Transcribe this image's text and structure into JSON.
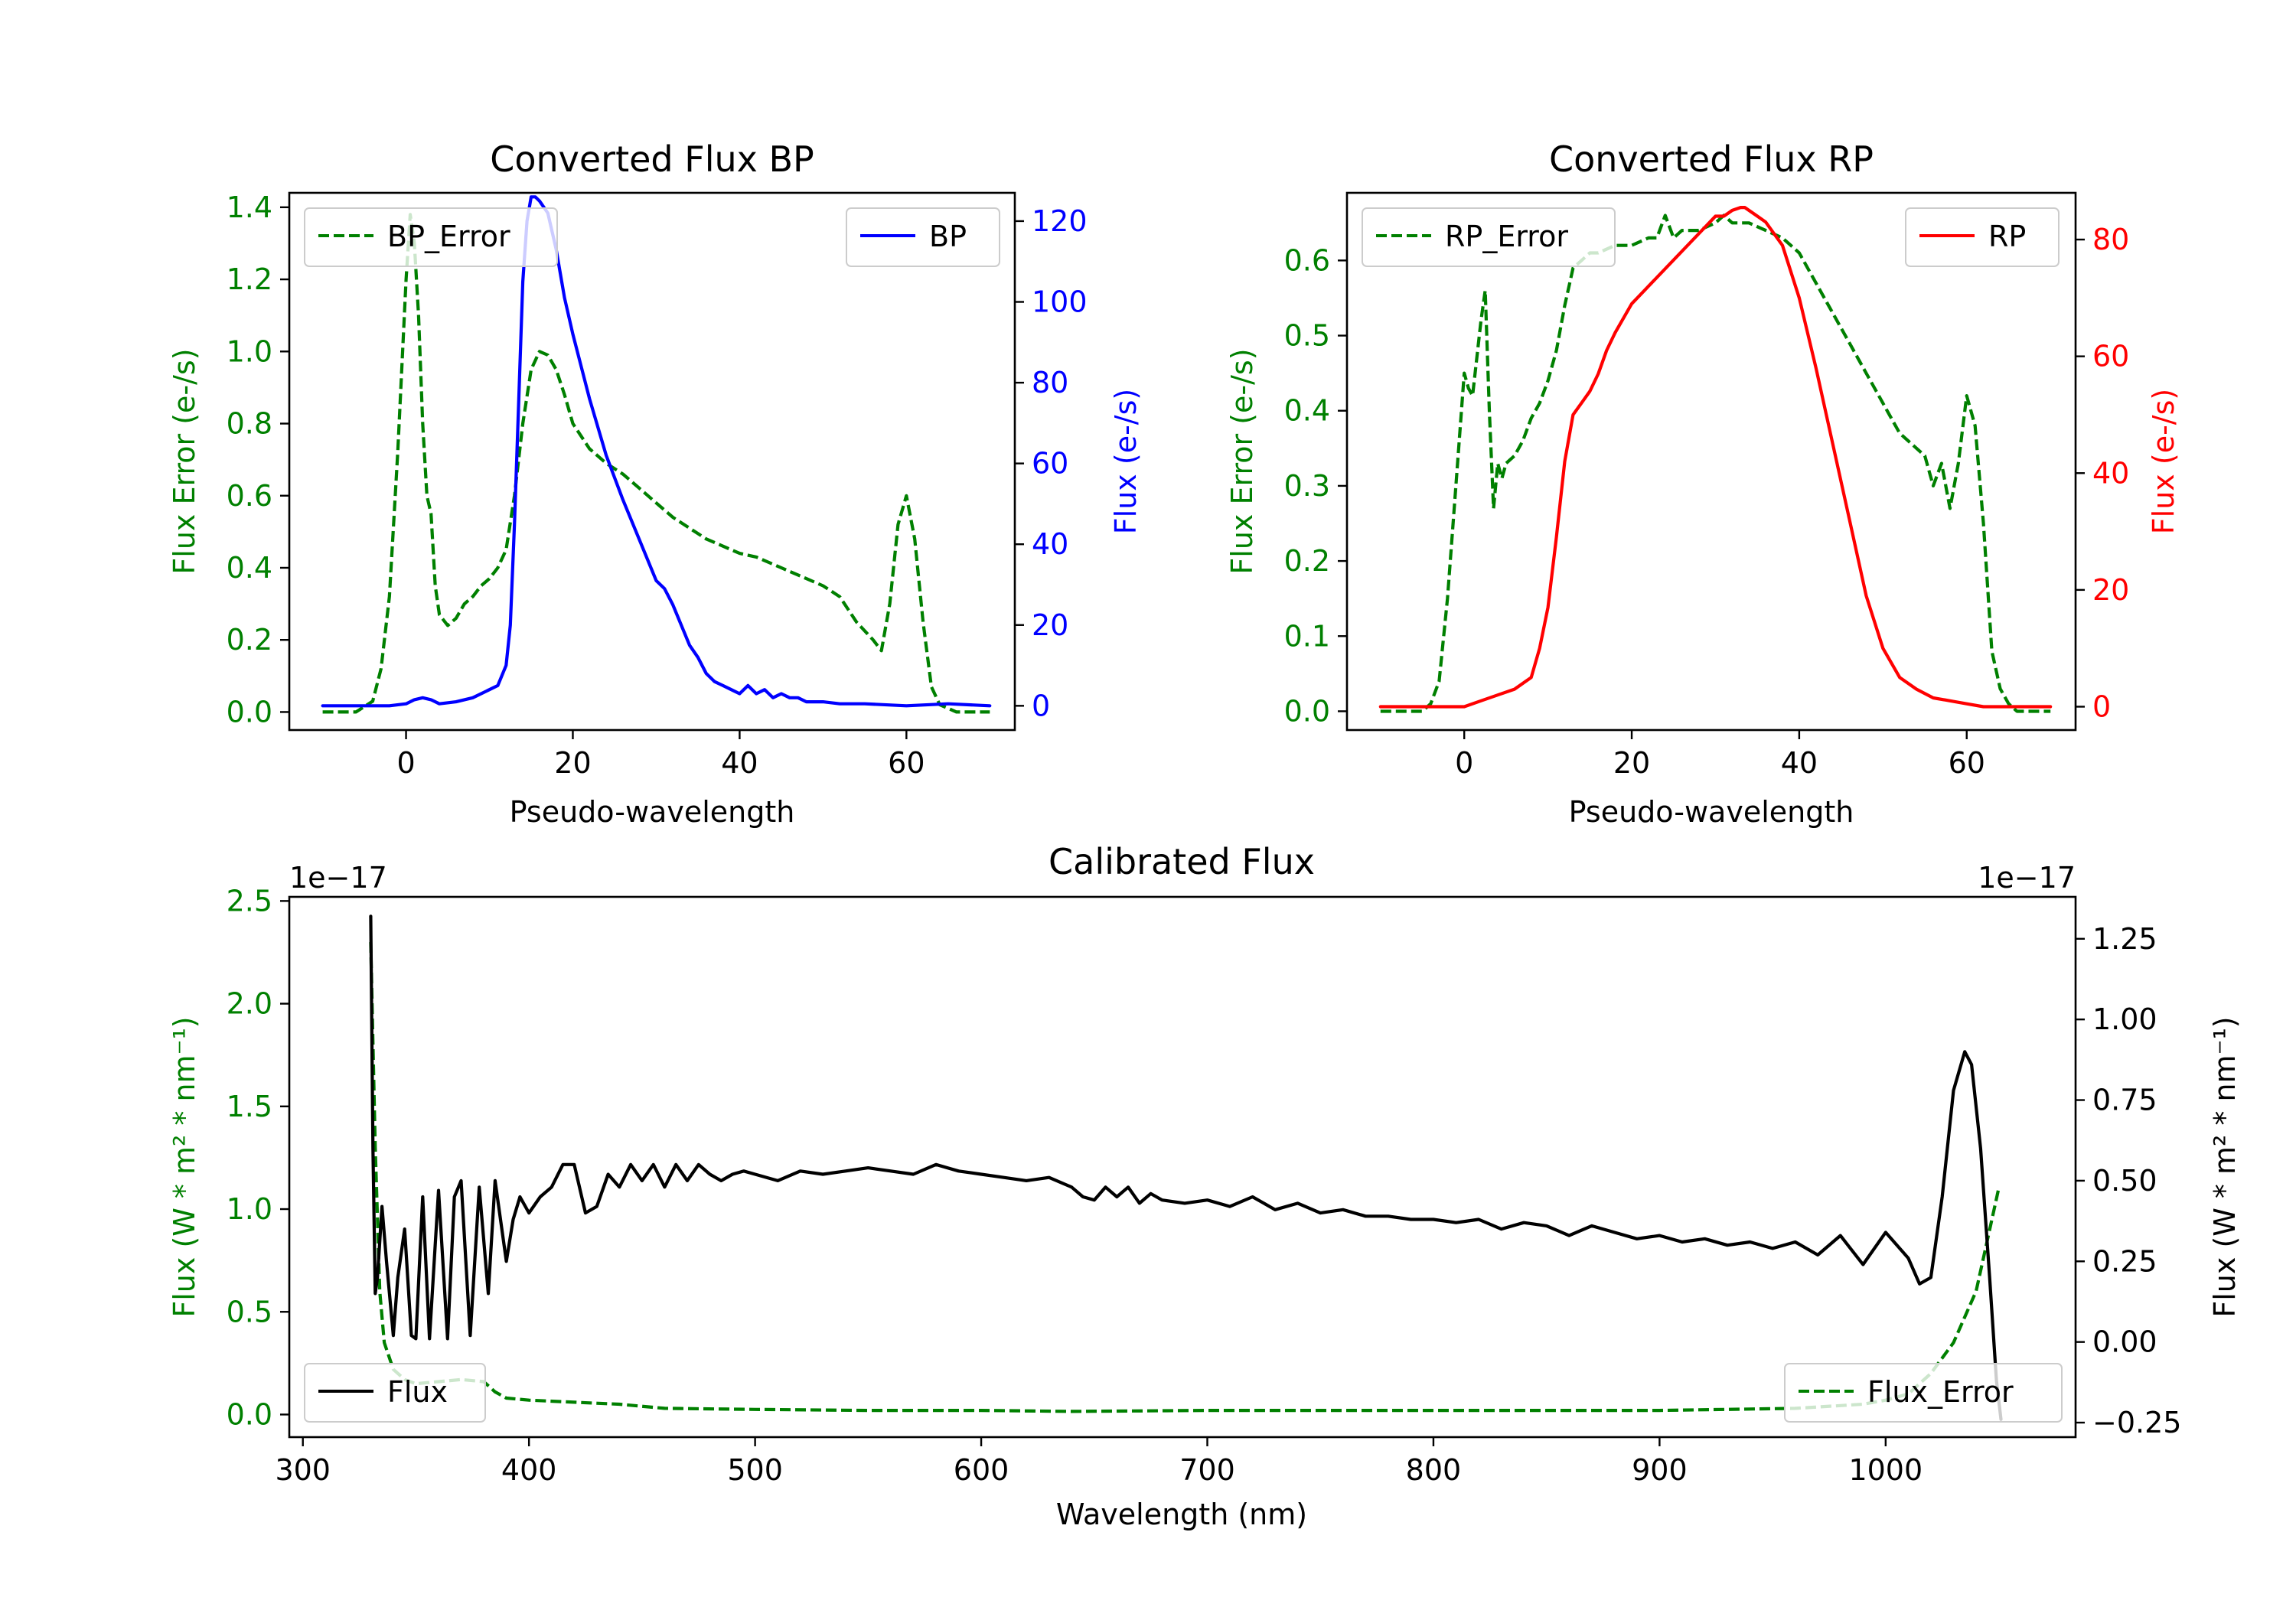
{
  "figure": {
    "colors": {
      "green": "#008000",
      "blue": "#0000ff",
      "red": "#ff0000",
      "black": "#000000"
    }
  },
  "chart_data": [
    {
      "type": "line",
      "title": "Converted Flux BP",
      "xlabel": "Pseudo-wavelength",
      "xlim": [
        -14,
        73
      ],
      "xticks": [
        0,
        20,
        40,
        60
      ],
      "y_left": {
        "label": "Flux Error (e-/s)",
        "color": "#008000",
        "lim": [
          -0.05,
          1.44
        ],
        "ticks": [
          0.0,
          0.2,
          0.4,
          0.6,
          0.8,
          1.0,
          1.2,
          1.4
        ],
        "tick_labels": [
          "0.0",
          "0.2",
          "0.4",
          "0.6",
          "0.8",
          "1.0",
          "1.2",
          "1.4"
        ]
      },
      "y_right": {
        "label": "Flux (e-/s)",
        "color": "#0000ff",
        "lim": [
          -6,
          127
        ],
        "ticks": [
          0,
          20,
          40,
          60,
          80,
          100,
          120
        ],
        "tick_labels": [
          "0",
          "20",
          "40",
          "60",
          "80",
          "100",
          "120"
        ]
      },
      "series": [
        {
          "name": "BP_Error",
          "axis": "left",
          "color": "#008000",
          "dash": true,
          "x": [
            -10,
            -6,
            -4,
            -3,
            -2,
            -1,
            0,
            0.5,
            1,
            1.5,
            2,
            2.5,
            3,
            3.5,
            4,
            5,
            6,
            7,
            8,
            9,
            10,
            11,
            12,
            13,
            14,
            15,
            16,
            17,
            18,
            19,
            20,
            22,
            24,
            26,
            28,
            30,
            32,
            34,
            36,
            38,
            40,
            42,
            44,
            46,
            48,
            50,
            52,
            54,
            56,
            57,
            58,
            59,
            60,
            61,
            62,
            63,
            64,
            65,
            66,
            70
          ],
          "y": [
            0,
            0,
            0.03,
            0.12,
            0.32,
            0.72,
            1.2,
            1.38,
            1.3,
            1.1,
            0.8,
            0.6,
            0.55,
            0.35,
            0.27,
            0.24,
            0.26,
            0.3,
            0.32,
            0.35,
            0.37,
            0.4,
            0.45,
            0.6,
            0.8,
            0.95,
            1.0,
            0.99,
            0.95,
            0.88,
            0.8,
            0.73,
            0.69,
            0.66,
            0.62,
            0.58,
            0.54,
            0.51,
            0.48,
            0.46,
            0.44,
            0.43,
            0.41,
            0.39,
            0.37,
            0.35,
            0.32,
            0.25,
            0.2,
            0.17,
            0.3,
            0.52,
            0.6,
            0.48,
            0.25,
            0.07,
            0.02,
            0.01,
            0,
            0
          ]
        },
        {
          "name": "BP",
          "axis": "right",
          "color": "#0000ff",
          "dash": false,
          "x": [
            -10,
            -5,
            -2,
            0,
            1,
            2,
            3,
            4,
            6,
            8,
            10,
            11,
            12,
            12.5,
            13,
            13.5,
            14,
            14.5,
            15,
            15.5,
            16,
            17,
            18,
            19,
            20,
            22,
            24,
            26,
            28,
            30,
            31,
            32,
            33,
            34,
            35,
            36,
            37,
            38,
            39,
            40,
            41,
            42,
            43,
            44,
            45,
            46,
            47,
            48,
            50,
            52,
            55,
            60,
            65,
            70
          ],
          "y": [
            0,
            0,
            0,
            0.5,
            1.5,
            2,
            1.5,
            0.5,
            1,
            2,
            4,
            5,
            10,
            20,
            45,
            75,
            105,
            120,
            126,
            126,
            125,
            122,
            113,
            101,
            92,
            76,
            62,
            51,
            41,
            31,
            29,
            25,
            20,
            15,
            12,
            8,
            6,
            5,
            4,
            3,
            5,
            3,
            4,
            2,
            3,
            2,
            2,
            1,
            1,
            0.5,
            0.5,
            0,
            0.5,
            0
          ]
        }
      ],
      "legend": [
        {
          "label": "BP_Error",
          "placement": "upper left"
        },
        {
          "label": "BP",
          "placement": "upper right"
        }
      ]
    },
    {
      "type": "line",
      "title": "Converted Flux RP",
      "xlabel": "Pseudo-wavelength",
      "xlim": [
        -14,
        73
      ],
      "xticks": [
        0,
        20,
        40,
        60
      ],
      "y_left": {
        "label": "Flux Error (e-/s)",
        "color": "#008000",
        "lim": [
          -0.025,
          0.69
        ],
        "ticks": [
          0.0,
          0.1,
          0.2,
          0.3,
          0.4,
          0.5,
          0.6
        ],
        "tick_labels": [
          "0.0",
          "0.1",
          "0.2",
          "0.3",
          "0.4",
          "0.5",
          "0.6"
        ]
      },
      "y_right": {
        "label": "Flux (e-/s)",
        "color": "#ff0000",
        "lim": [
          -4,
          88
        ],
        "ticks": [
          0,
          20,
          40,
          60,
          80
        ],
        "tick_labels": [
          "0",
          "20",
          "40",
          "60",
          "80"
        ]
      },
      "series": [
        {
          "name": "RP_Error",
          "axis": "left",
          "color": "#008000",
          "dash": true,
          "x": [
            -10,
            -5,
            -4,
            -3,
            -2,
            -1,
            0,
            0.5,
            1,
            1.5,
            2,
            2.5,
            3,
            3.5,
            4,
            4.5,
            5,
            6,
            7,
            8,
            9,
            10,
            11,
            12,
            13,
            14,
            15,
            16,
            18,
            20,
            22,
            23,
            24,
            25,
            26,
            28,
            30,
            31,
            32,
            34,
            36,
            38,
            40,
            42,
            44,
            46,
            48,
            50,
            52,
            54,
            55,
            56,
            57,
            58,
            59,
            60,
            61,
            62,
            63,
            64,
            65,
            66,
            70
          ],
          "y": [
            0,
            0,
            0.01,
            0.04,
            0.15,
            0.3,
            0.45,
            0.43,
            0.42,
            0.47,
            0.52,
            0.56,
            0.4,
            0.27,
            0.33,
            0.31,
            0.33,
            0.34,
            0.36,
            0.39,
            0.41,
            0.44,
            0.48,
            0.54,
            0.59,
            0.6,
            0.61,
            0.61,
            0.62,
            0.62,
            0.63,
            0.63,
            0.66,
            0.63,
            0.64,
            0.64,
            0.65,
            0.66,
            0.65,
            0.65,
            0.64,
            0.63,
            0.61,
            0.57,
            0.53,
            0.49,
            0.45,
            0.41,
            0.37,
            0.35,
            0.34,
            0.3,
            0.33,
            0.27,
            0.33,
            0.42,
            0.38,
            0.25,
            0.08,
            0.03,
            0.01,
            0,
            0
          ]
        },
        {
          "name": "RP",
          "axis": "right",
          "color": "#ff0000",
          "dash": false,
          "x": [
            -10,
            -5,
            0,
            2,
            4,
            6,
            8,
            9,
            10,
            11,
            12,
            13,
            14,
            15,
            16,
            17,
            18,
            20,
            22,
            24,
            26,
            28,
            30,
            31,
            32,
            33,
            33.5,
            34,
            35,
            36,
            38,
            40,
            42,
            44,
            46,
            48,
            50,
            52,
            54,
            56,
            58,
            60,
            62,
            65,
            70
          ],
          "y": [
            0,
            0,
            0,
            1,
            2,
            3,
            5,
            10,
            17,
            29,
            42,
            50,
            52,
            54,
            57,
            61,
            64,
            69,
            72,
            75,
            78,
            81,
            84,
            84,
            85,
            85.5,
            85.5,
            85,
            84,
            83,
            79,
            70,
            58,
            45,
            32,
            19,
            10,
            5,
            3,
            1.5,
            1,
            0.5,
            0,
            0,
            0
          ]
        }
      ],
      "legend": [
        {
          "label": "RP_Error",
          "placement": "upper left"
        },
        {
          "label": "RP",
          "placement": "upper right"
        }
      ]
    },
    {
      "type": "line",
      "title": "Calibrated Flux",
      "xlabel": "Wavelength (nm)",
      "xlim": [
        294,
        1084
      ],
      "xticks": [
        300,
        400,
        500,
        600,
        700,
        800,
        900,
        1000
      ],
      "y_left": {
        "label": "Flux (W * m² * nm⁻¹)",
        "color": "#008000",
        "offset_text": "1e−17",
        "lim": [
          -0.11,
          2.52
        ],
        "ticks": [
          0.0,
          0.5,
          1.0,
          1.5,
          2.0,
          2.5
        ],
        "tick_labels": [
          "0.0",
          "0.5",
          "1.0",
          "1.5",
          "2.0",
          "2.5"
        ]
      },
      "y_right": {
        "label": "Flux (W * m² * nm⁻¹)",
        "color": "#000000",
        "offset_text": "1e−17",
        "lim": [
          -0.295,
          1.38
        ],
        "ticks": [
          -0.25,
          0.0,
          0.25,
          0.5,
          0.75,
          1.0,
          1.25
        ],
        "tick_labels": [
          "−0.25",
          "0.00",
          "0.25",
          "0.50",
          "0.75",
          "1.00",
          "1.25"
        ]
      },
      "series": [
        {
          "name": "Flux_Error",
          "axis": "left",
          "color": "#008000",
          "dash": true,
          "x": [
            330,
            332,
            334,
            336,
            340,
            345,
            350,
            360,
            370,
            380,
            385,
            390,
            400,
            420,
            440,
            460,
            500,
            550,
            600,
            640,
            700,
            800,
            900,
            960,
            990,
            1000,
            1010,
            1020,
            1030,
            1040,
            1045,
            1050
          ],
          "y": [
            2.3,
            1.3,
            0.6,
            0.35,
            0.22,
            0.17,
            0.15,
            0.16,
            0.17,
            0.16,
            0.11,
            0.08,
            0.07,
            0.06,
            0.05,
            0.03,
            0.025,
            0.02,
            0.02,
            0.015,
            0.02,
            0.02,
            0.02,
            0.03,
            0.05,
            0.07,
            0.1,
            0.2,
            0.35,
            0.6,
            0.85,
            1.1
          ]
        },
        {
          "name": "Flux",
          "axis": "right",
          "color": "#000000",
          "dash": false,
          "x": [
            330,
            331,
            332,
            333,
            335,
            337,
            340,
            342,
            345,
            348,
            350,
            353,
            356,
            360,
            364,
            367,
            370,
            374,
            378,
            382,
            385,
            390,
            393,
            396,
            400,
            405,
            410,
            415,
            420,
            425,
            430,
            435,
            440,
            445,
            450,
            455,
            460,
            465,
            470,
            475,
            480,
            485,
            490,
            495,
            500,
            510,
            520,
            530,
            540,
            550,
            560,
            570,
            580,
            590,
            600,
            610,
            620,
            630,
            640,
            645,
            650,
            655,
            660,
            665,
            670,
            675,
            680,
            690,
            700,
            710,
            720,
            730,
            740,
            750,
            760,
            770,
            780,
            790,
            800,
            810,
            820,
            830,
            840,
            850,
            860,
            870,
            880,
            890,
            900,
            910,
            920,
            930,
            940,
            950,
            960,
            970,
            980,
            990,
            1000,
            1010,
            1015,
            1020,
            1025,
            1030,
            1035,
            1038,
            1042,
            1046,
            1049,
            1051
          ],
          "y": [
            1.32,
            0.6,
            0.15,
            0.2,
            0.42,
            0.25,
            0.02,
            0.2,
            0.35,
            0.02,
            0.01,
            0.45,
            0.01,
            0.47,
            0.01,
            0.45,
            0.5,
            0.02,
            0.48,
            0.15,
            0.5,
            0.25,
            0.38,
            0.45,
            0.4,
            0.45,
            0.48,
            0.55,
            0.55,
            0.4,
            0.42,
            0.52,
            0.48,
            0.55,
            0.5,
            0.55,
            0.48,
            0.55,
            0.5,
            0.55,
            0.52,
            0.5,
            0.52,
            0.53,
            0.52,
            0.5,
            0.53,
            0.52,
            0.53,
            0.54,
            0.53,
            0.52,
            0.55,
            0.53,
            0.52,
            0.51,
            0.5,
            0.51,
            0.48,
            0.45,
            0.44,
            0.48,
            0.45,
            0.48,
            0.43,
            0.46,
            0.44,
            0.43,
            0.44,
            0.42,
            0.45,
            0.41,
            0.43,
            0.4,
            0.41,
            0.39,
            0.39,
            0.38,
            0.38,
            0.37,
            0.38,
            0.35,
            0.37,
            0.36,
            0.33,
            0.36,
            0.34,
            0.32,
            0.33,
            0.31,
            0.32,
            0.3,
            0.31,
            0.29,
            0.31,
            0.27,
            0.33,
            0.24,
            0.34,
            0.26,
            0.18,
            0.2,
            0.45,
            0.78,
            0.9,
            0.86,
            0.6,
            0.2,
            -0.12,
            -0.24
          ]
        }
      ],
      "legend": [
        {
          "label": "Flux",
          "placement": "lower left"
        },
        {
          "label": "Flux_Error",
          "placement": "lower right"
        }
      ]
    }
  ]
}
